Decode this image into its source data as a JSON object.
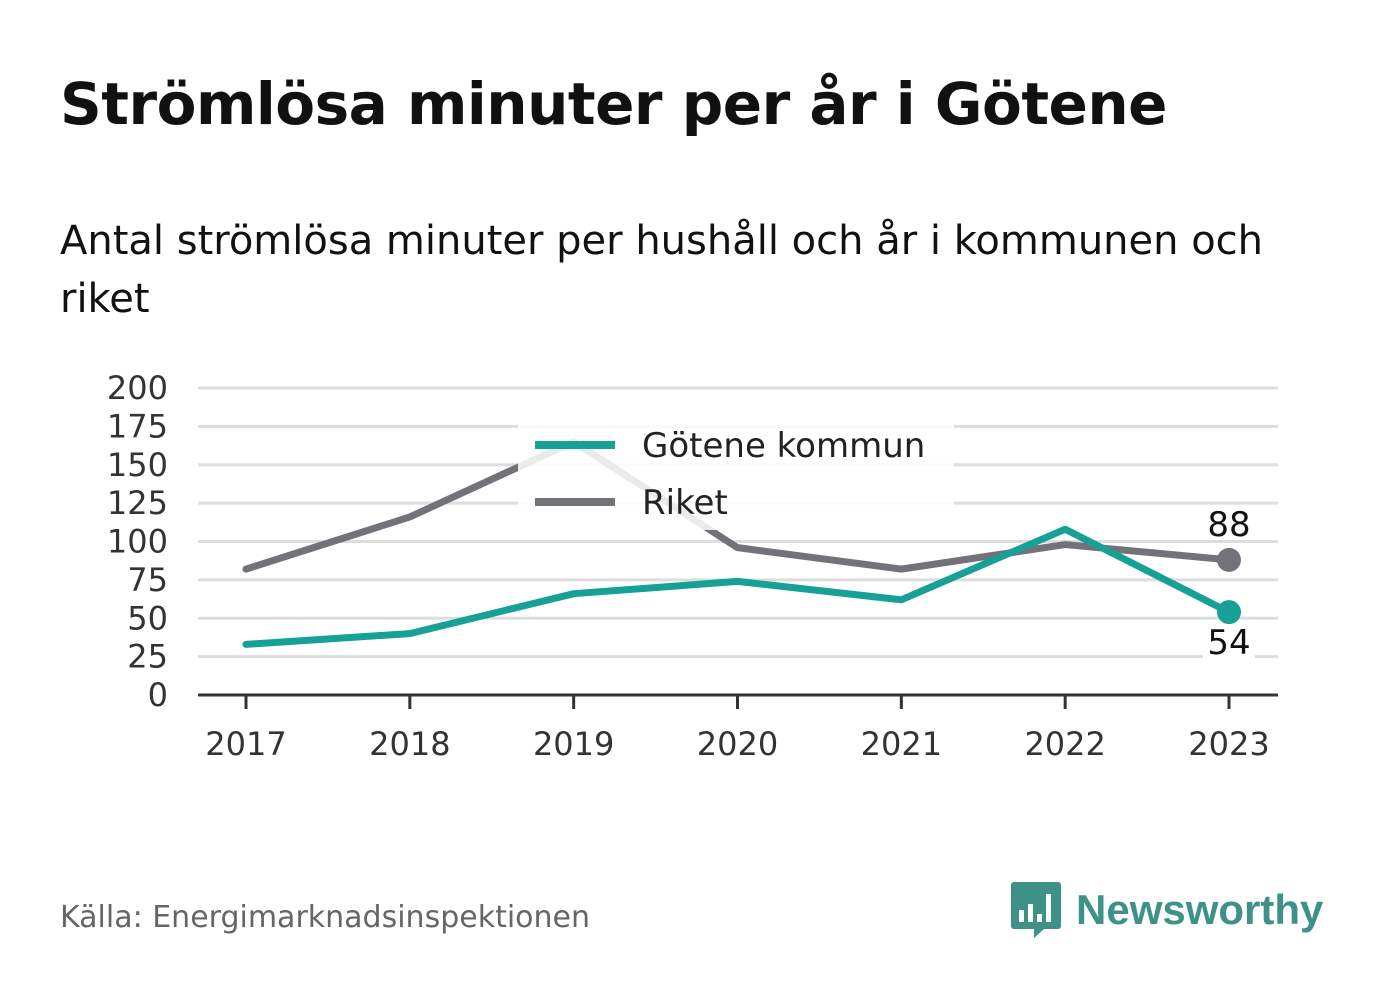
{
  "title": "Strömlösa minuter per år i Götene",
  "subtitle": "Antal strömlösa minuter per hushåll och år i kommunen och riket",
  "source": "Källa: Energimarknadsinspektionen",
  "brand": {
    "name": "Newsworthy",
    "icon": "bar-chart-speech-bubble-icon",
    "color": "#3e9187"
  },
  "colors": {
    "gotene": "#16a096",
    "riket": "#737279",
    "grid": "#dddddd",
    "axis": "#333333"
  },
  "chart_data": {
    "type": "line",
    "x": [
      "2017",
      "2018",
      "2019",
      "2020",
      "2021",
      "2022",
      "2023"
    ],
    "ylim": [
      0,
      200
    ],
    "yticks": [
      "0",
      "25",
      "50",
      "75",
      "100",
      "125",
      "150",
      "175",
      "200"
    ],
    "grid": true,
    "legend_position": "top-center",
    "series": [
      {
        "name": "Götene kommun",
        "values": [
          33,
          40,
          66,
          74,
          62,
          108,
          54
        ],
        "end_label": "54"
      },
      {
        "name": "Riket",
        "values": [
          82,
          116,
          165,
          96,
          82,
          98,
          88
        ],
        "end_label": "88"
      }
    ]
  }
}
